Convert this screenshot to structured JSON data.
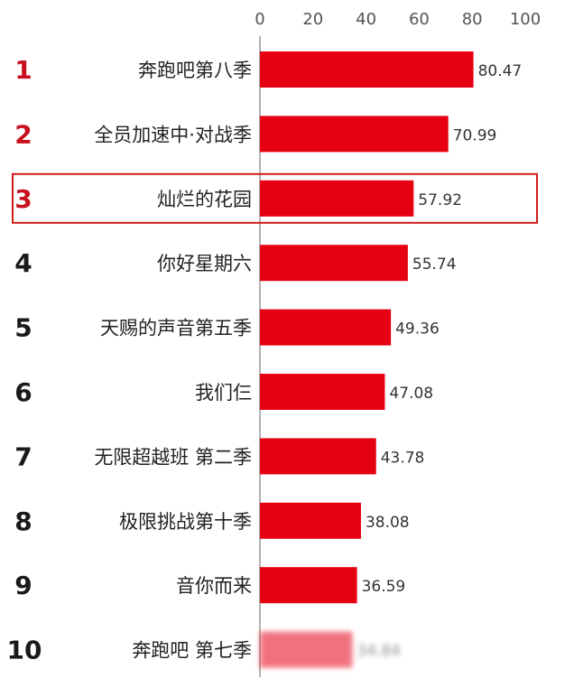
{
  "chart_data": {
    "type": "bar",
    "orientation": "horizontal",
    "xlim": [
      0,
      100
    ],
    "xticks": [
      "0",
      "20",
      "40",
      "60",
      "80",
      "100"
    ],
    "ranks": [
      "1",
      "2",
      "3",
      "4",
      "5",
      "6",
      "7",
      "8",
      "9",
      "10"
    ],
    "categories": [
      "奔跑吧第八季",
      "全员加速中·对战季",
      "灿烂的花园",
      "你好星期六",
      "天赐的声音第五季",
      "我们仨",
      "无限超越班 第二季",
      "极限挑战第十季",
      "音你而来",
      "奔跑吧 第七季"
    ],
    "values": [
      80.47,
      70.99,
      57.92,
      55.74,
      49.36,
      47.08,
      43.78,
      38.08,
      36.59,
      34.84
    ],
    "value_labels": [
      "80.47",
      "70.99",
      "57.92",
      "55.74",
      "49.36",
      "47.08",
      "43.78",
      "38.08",
      "36.59",
      "34.84"
    ],
    "highlighted_rank": "3",
    "blurred_rank": "10",
    "grid": false,
    "colors": {
      "bar": "#e50012",
      "rank_top3": "#c8101e",
      "rank_other": "#1a1a1a",
      "highlight_box": "#d11a1a",
      "axis": "#999999"
    }
  }
}
